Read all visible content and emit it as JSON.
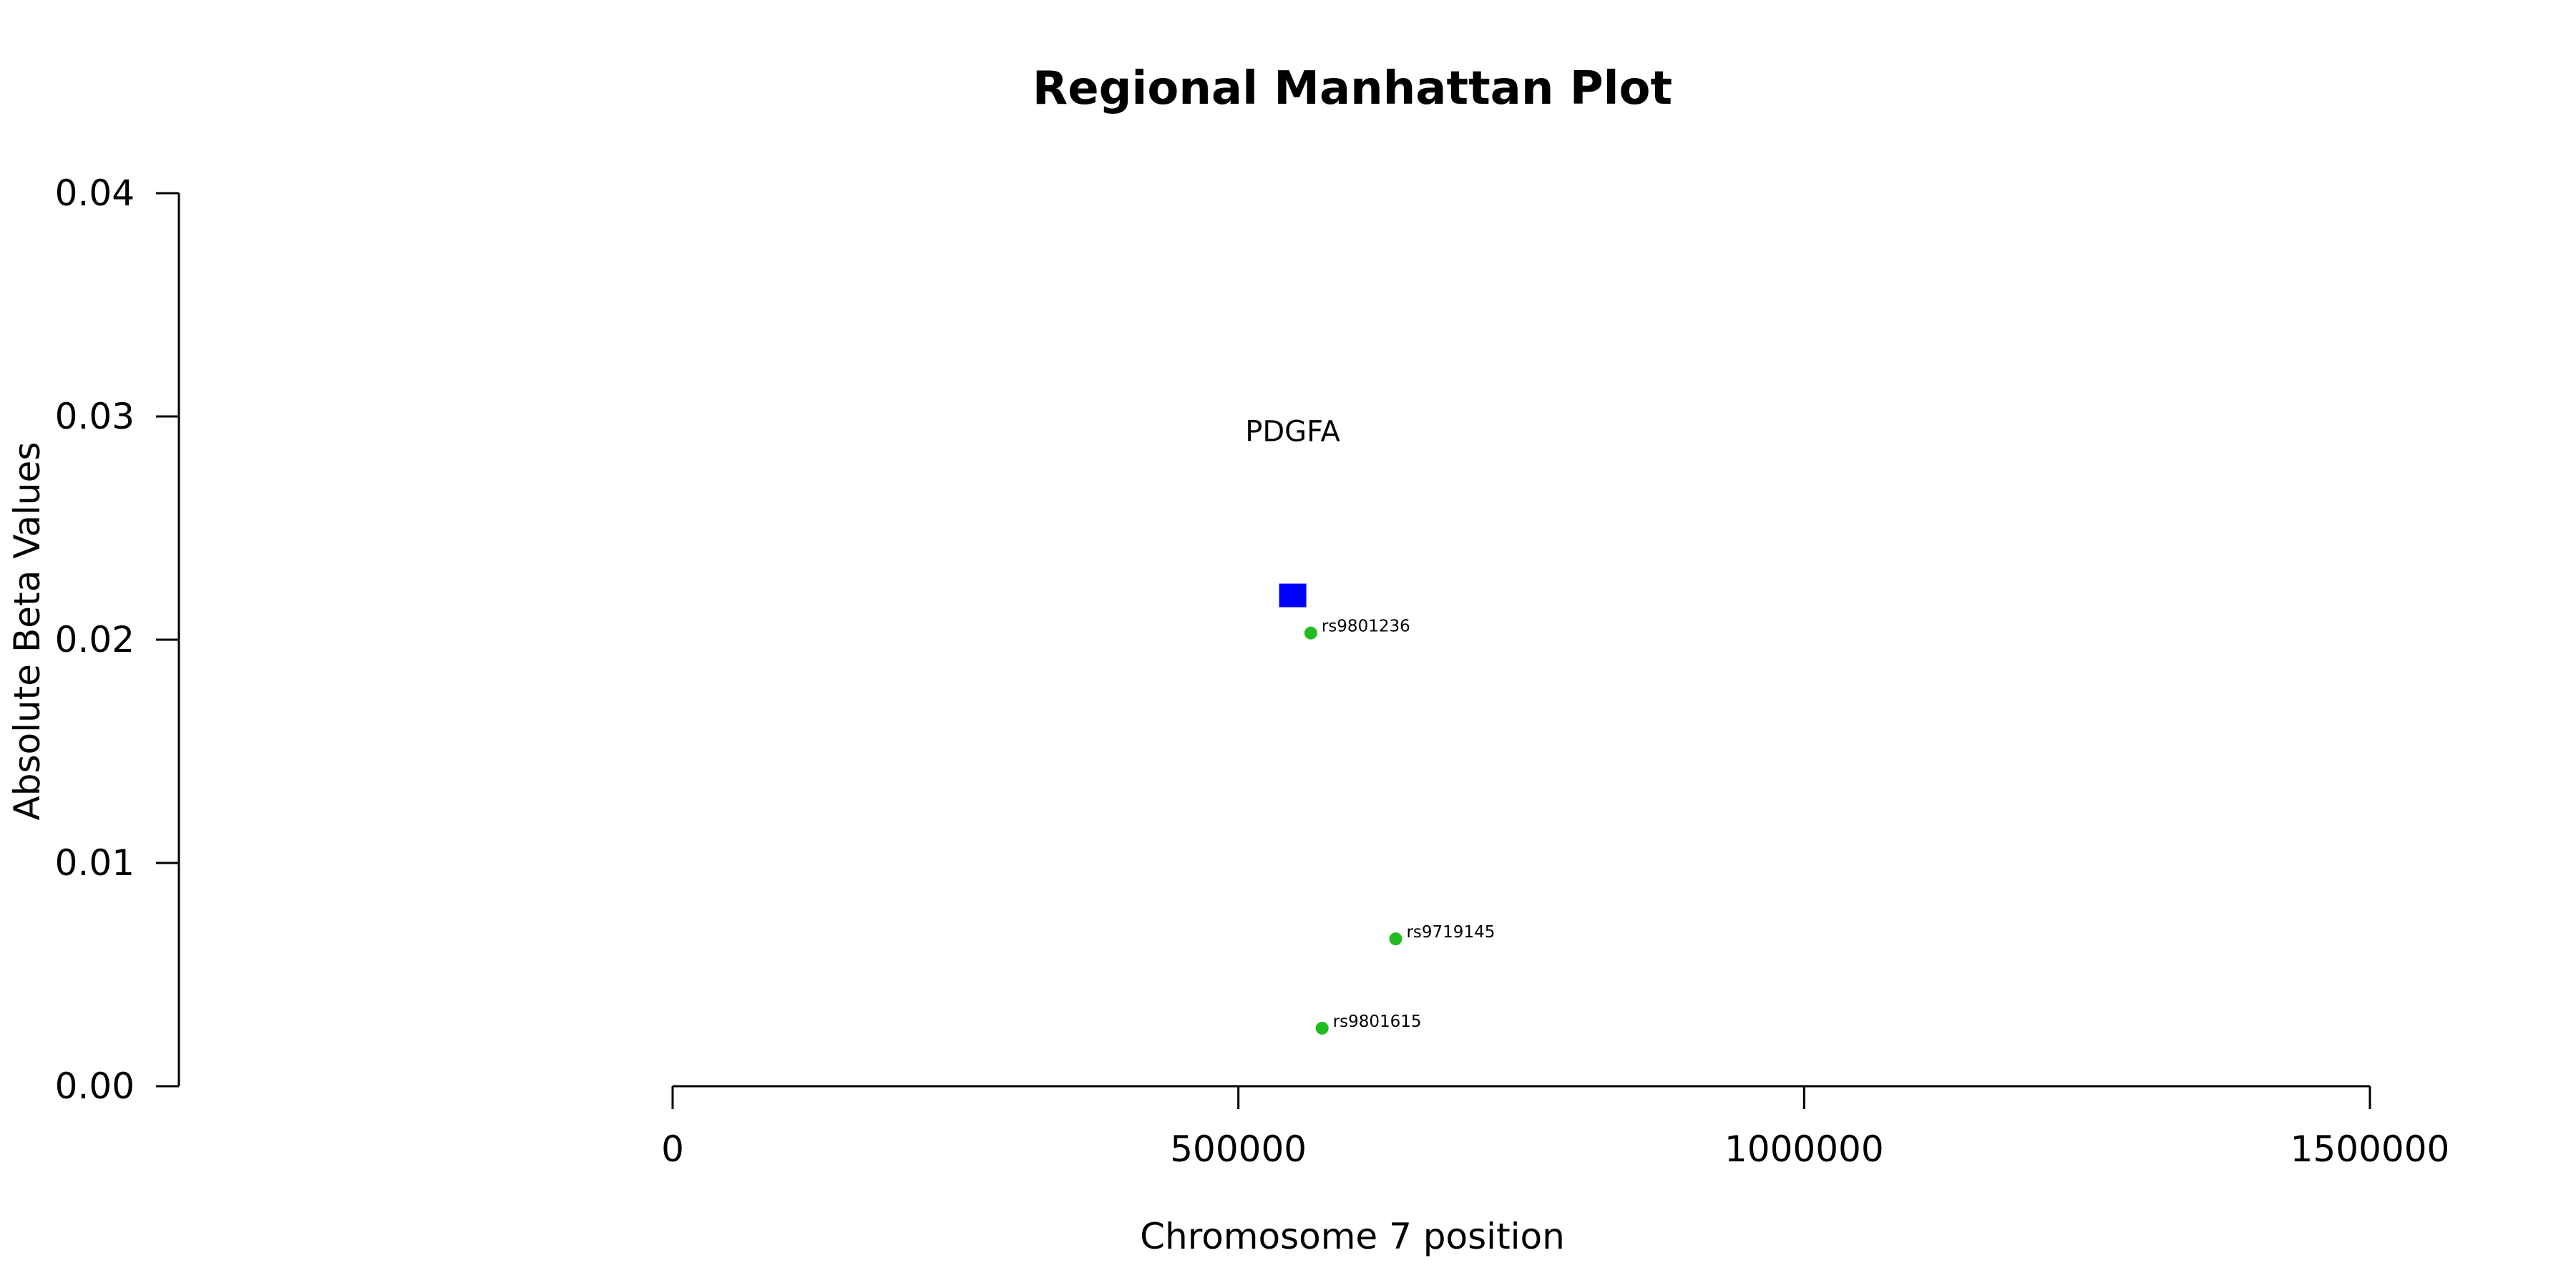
{
  "chart_data": {
    "type": "scatter",
    "title": "Regional Manhattan Plot",
    "xlabel": "Chromosome 7 position",
    "ylabel": "Absolute Beta Values",
    "xlim": [
      0,
      1500000
    ],
    "ylim": [
      0,
      0.04
    ],
    "x_ticks": [
      0,
      500000,
      1000000,
      1500000
    ],
    "x_tick_labels": [
      "0",
      "500000",
      "1000000",
      "1500000"
    ],
    "y_ticks": [
      0,
      0.01,
      0.02,
      0.03,
      0.04
    ],
    "y_tick_labels": [
      "0.00",
      "0.01",
      "0.02",
      "0.03",
      "0.04"
    ],
    "grid": false,
    "gene": {
      "name": "PDGFA",
      "x": 548000,
      "y": 0.022,
      "color": "#0000ff",
      "marker": "square"
    },
    "snps": [
      {
        "id": "rs9801236",
        "x": 564000,
        "y": 0.0203,
        "color": "#22bb22"
      },
      {
        "id": "rs9719145",
        "x": 639000,
        "y": 0.0066,
        "color": "#22bb22"
      },
      {
        "id": "rs9801615",
        "x": 574000,
        "y": 0.0026,
        "color": "#22bb22"
      }
    ]
  }
}
